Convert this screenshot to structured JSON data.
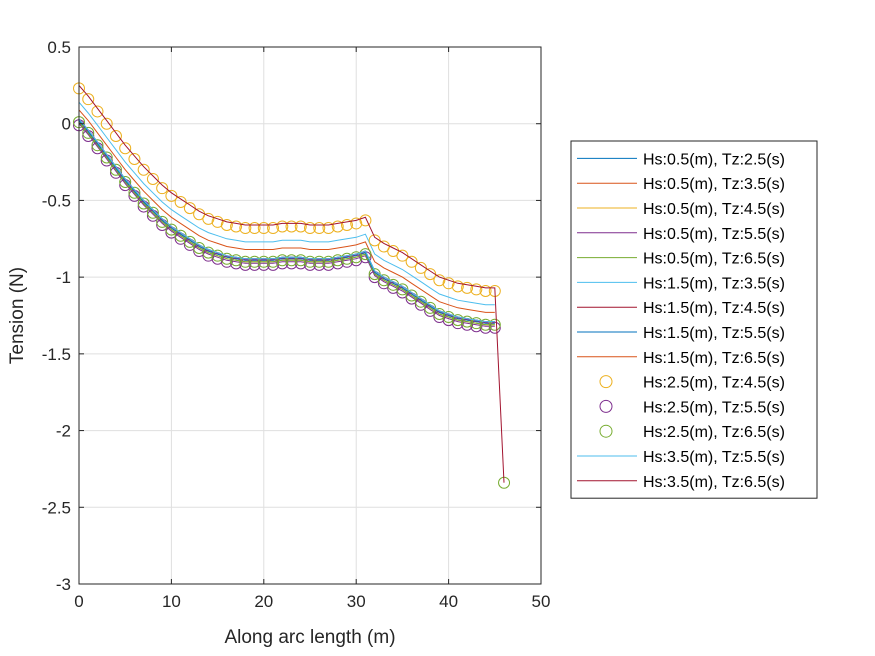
{
  "chart_data": {
    "type": "line",
    "title": "",
    "xlabel": "Along arc length (m)",
    "ylabel": "Tension (N)",
    "xlim": [
      0,
      50
    ],
    "ylim": [
      -3,
      0.5
    ],
    "xticks": [
      0,
      10,
      20,
      30,
      40,
      50
    ],
    "xtick_labels": [
      "0",
      "10",
      "20",
      "30",
      "40",
      "50"
    ],
    "yticks": [
      0.5,
      0,
      -0.5,
      -1,
      -1.5,
      -2,
      -2.5,
      -3
    ],
    "ytick_labels": [
      "0.5",
      "0",
      "-0.5",
      "-1",
      "-1.5",
      "-2",
      "-2.5",
      "-3"
    ],
    "grid": true,
    "legend_position": "right",
    "x": [
      0,
      1,
      2,
      3,
      4,
      5,
      6,
      7,
      8,
      9,
      10,
      11,
      12,
      13,
      14,
      15,
      16,
      17,
      18,
      19,
      20,
      21,
      22,
      23,
      24,
      25,
      26,
      27,
      28,
      29,
      30,
      31,
      32,
      33,
      34,
      35,
      36,
      37,
      38,
      39,
      40,
      41,
      42,
      43,
      44,
      45
    ],
    "series": [
      {
        "name": "Hs:0.5(m), Tz:2.5(s)",
        "style": "line",
        "color": "#0072BD",
        "offset": 0.0
      },
      {
        "name": "Hs:0.5(m), Tz:3.5(s)",
        "style": "line",
        "color": "#D95319",
        "offset": -0.01
      },
      {
        "name": "Hs:0.5(m), Tz:4.5(s)",
        "style": "line",
        "color": "#EDB120",
        "offset": -0.02
      },
      {
        "name": "Hs:0.5(m), Tz:5.5(s)",
        "style": "line",
        "color": "#7E2F8E",
        "offset": -0.03
      },
      {
        "name": "Hs:0.5(m), Tz:6.5(s)",
        "style": "line",
        "color": "#77AC30",
        "offset": -0.02
      },
      {
        "name": "Hs:1.5(m), Tz:3.5(s)",
        "style": "line",
        "color": "#4DBEEE",
        "offset": 0.11
      },
      {
        "name": "Hs:1.5(m), Tz:4.5(s)",
        "style": "line",
        "color": "#A2142F",
        "offset": 0.0
      },
      {
        "name": "Hs:1.5(m), Tz:5.5(s)",
        "style": "line",
        "color": "#0072BD",
        "offset": -0.01
      },
      {
        "name": "Hs:1.5(m), Tz:6.5(s)",
        "style": "line",
        "color": "#D95319",
        "offset": 0.06
      },
      {
        "name": "Hs:2.5(m), Tz:4.5(s)",
        "style": "circle",
        "color": "#EDB120",
        "offset": 0.2
      },
      {
        "name": "Hs:2.5(m), Tz:5.5(s)",
        "style": "circle",
        "color": "#7E2F8E",
        "offset": -0.04
      },
      {
        "name": "Hs:2.5(m), Tz:6.5(s)",
        "style": "circle",
        "color": "#77AC30",
        "offset": -0.02,
        "extra_point": [
          46,
          -2.34
        ]
      },
      {
        "name": "Hs:3.5(m), Tz:5.5(s)",
        "style": "line",
        "color": "#4DBEEE",
        "offset": 0.0
      },
      {
        "name": "Hs:3.5(m), Tz:6.5(s)",
        "style": "line",
        "color": "#A2142F",
        "offset": 0.22,
        "extra_point": [
          46,
          -2.34
        ]
      }
    ],
    "base_values": [
      0.03,
      -0.04,
      -0.12,
      -0.2,
      -0.28,
      -0.36,
      -0.43,
      -0.5,
      -0.56,
      -0.62,
      -0.67,
      -0.71,
      -0.75,
      -0.79,
      -0.82,
      -0.84,
      -0.86,
      -0.87,
      -0.88,
      -0.88,
      -0.88,
      -0.88,
      -0.87,
      -0.87,
      -0.87,
      -0.88,
      -0.88,
      -0.88,
      -0.87,
      -0.86,
      -0.85,
      -0.83,
      -0.96,
      -1.0,
      -1.03,
      -1.06,
      -1.1,
      -1.14,
      -1.18,
      -1.22,
      -1.24,
      -1.26,
      -1.27,
      -1.28,
      -1.29,
      -1.29
    ]
  }
}
